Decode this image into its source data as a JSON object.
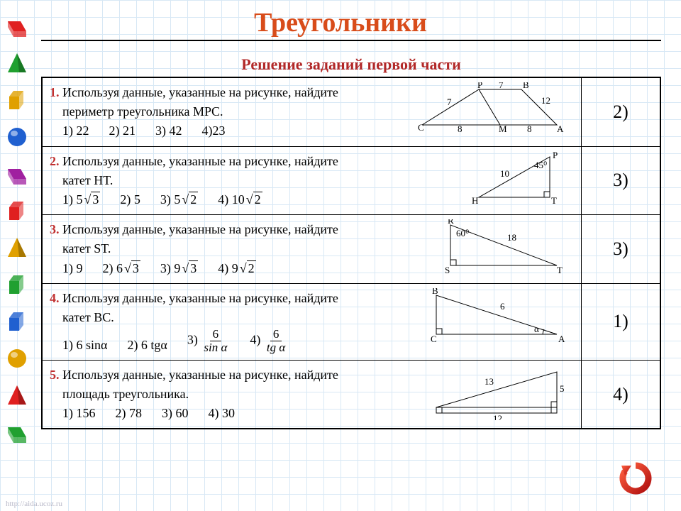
{
  "title": "Треугольники",
  "subtitle": "Решение заданий первой части",
  "sidebar_shapes": [
    {
      "fill": "#e02020",
      "type": "prism"
    },
    {
      "fill": "#20a030",
      "type": "cone"
    },
    {
      "fill": "#e0a000",
      "type": "cube"
    },
    {
      "fill": "#2060d0",
      "type": "sphere"
    },
    {
      "fill": "#a020a0",
      "type": "prism"
    },
    {
      "fill": "#e02020",
      "type": "cube"
    },
    {
      "fill": "#e0a000",
      "type": "pyramid"
    },
    {
      "fill": "#20a030",
      "type": "cube"
    },
    {
      "fill": "#2060d0",
      "type": "cube"
    },
    {
      "fill": "#e0a000",
      "type": "sphere"
    },
    {
      "fill": "#e02020",
      "type": "pyramid"
    },
    {
      "fill": "#20a030",
      "type": "prism"
    }
  ],
  "problems": [
    {
      "num": "1.",
      "line1": "Используя данные, указанные на рисунке, найдите",
      "line2": "периметр треугольника MPC.",
      "opts": [
        "1) 22",
        "2) 21",
        "3) 42",
        "4)23"
      ],
      "answer": "2)",
      "fig": {
        "type": "tri1",
        "labels": {
          "P": "P",
          "B": "B",
          "C": "C",
          "M": "M",
          "A": "A",
          "v7a": "7",
          "v7b": "7",
          "v12": "12",
          "v8a": "8",
          "v8b": "8"
        }
      }
    },
    {
      "num": "2.",
      "line1": "Используя данные, указанные на рисунке, найдите",
      "line2": "катет HT.",
      "opts_sqrt": [
        {
          "pre": "1)",
          "coef": "5",
          "rad": "3"
        },
        {
          "pre": "2) 5",
          "plain": true
        },
        {
          "pre": "3)",
          "coef": "5",
          "rad": "2"
        },
        {
          "pre": "4)",
          "coef": "10",
          "rad": "2"
        }
      ],
      "answer": "3)",
      "fig": {
        "type": "tri2",
        "labels": {
          "P": "P",
          "H": "H",
          "T": "T",
          "ang": "45⁰",
          "hyp": "10"
        }
      }
    },
    {
      "num": "3.",
      "line1": "Используя данные, указанные на рисунке, найдите",
      "line2": "катет  ST.",
      "opts_sqrt": [
        {
          "pre": "1) 9",
          "plain": true
        },
        {
          "pre": "2)",
          "coef": "6",
          "rad": "3"
        },
        {
          "pre": "3)",
          "coef": "9",
          "rad": "3"
        },
        {
          "pre": "4)",
          "coef": "9",
          "rad": "2"
        }
      ],
      "answer": "3)",
      "fig": {
        "type": "tri3",
        "labels": {
          "R": "R",
          "S": "S",
          "T": "T",
          "ang": "60⁰",
          "hyp": "18"
        }
      }
    },
    {
      "num": "4.",
      "line1": "Используя данные, указанные на рисунке, найдите",
      "line2": "катет  BC.",
      "opts_trig": {
        "o1": "1) 6 sinα",
        "o2": "2) 6 tgα",
        "o3_pre": "3)",
        "o3_num": "6",
        "o3_den": "sin α",
        "o4_pre": "4)",
        "o4_num": "6",
        "o4_den": "tg α"
      },
      "answer": "1)",
      "fig": {
        "type": "tri4",
        "labels": {
          "B": "B",
          "C": "C",
          "A": "A",
          "hyp": "6",
          "ang": "α"
        }
      }
    },
    {
      "num": "5.",
      "line1": "Используя данные, указанные на рисунке, найдите",
      "line2": "площадь треугольника.",
      "opts": [
        "1) 156",
        "2) 78",
        "3) 60",
        "4) 30"
      ],
      "answer": "4)",
      "fig": {
        "type": "tri5",
        "labels": {
          "a": "13",
          "b": "5",
          "c": "12"
        }
      }
    }
  ],
  "colors": {
    "title": "#d84c1a",
    "subtitle": "#b22828",
    "pnum": "#c03030",
    "border": "#000000",
    "grid": "#d8e8f5",
    "refresh": "#d02020"
  },
  "watermark": "http://aida.ucoz.ru",
  "fontsize": {
    "title": 38,
    "subtitle": 22,
    "body": 18,
    "answer": 26,
    "fig": 13
  }
}
